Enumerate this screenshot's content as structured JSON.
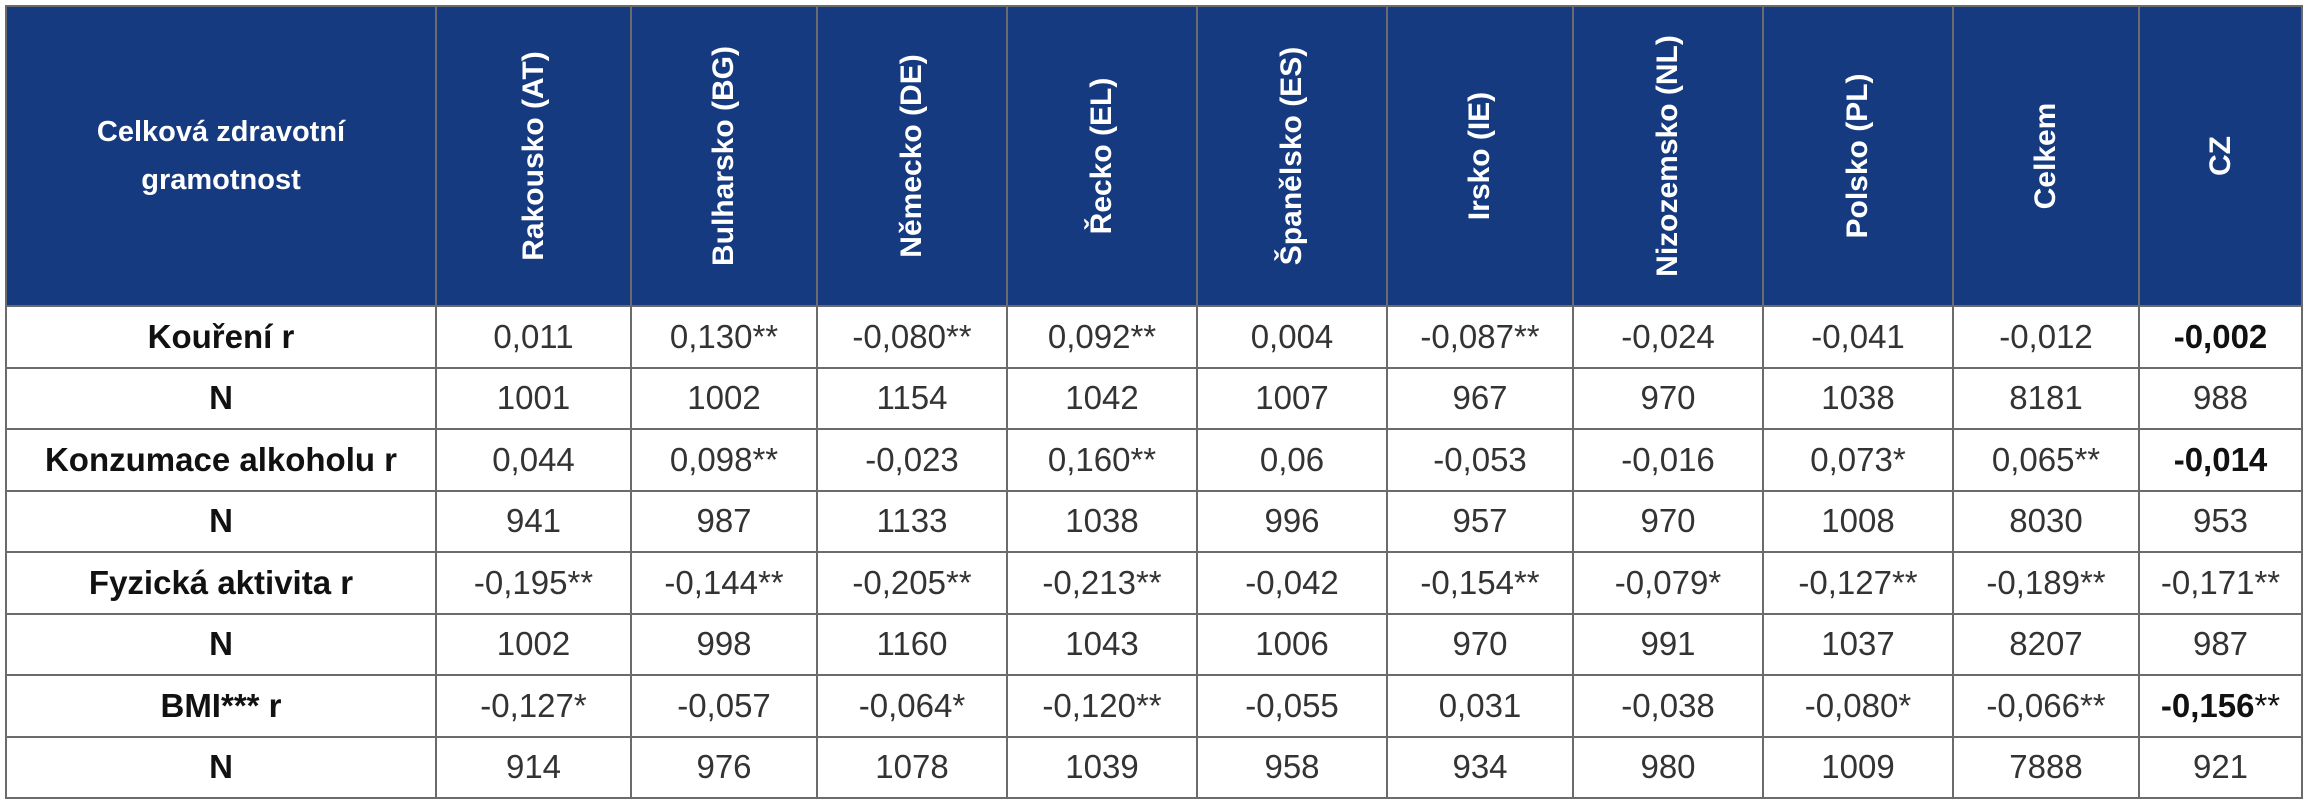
{
  "table": {
    "corner_label": "Celková zdravotní gramotnost",
    "columns": [
      "Rakousko (AT)",
      "Bulharsko (BG)",
      "Německo (DE)",
      "Řecko (EL)",
      "Španělsko (ES)",
      "Irsko (IE)",
      "Nizozemsko (NL)",
      "Polsko (PL)",
      "Celkem",
      "CZ"
    ],
    "rows": [
      {
        "label": "Kouření r",
        "cells": [
          {
            "value": "0,011",
            "sig": "",
            "bold": false
          },
          {
            "value": "0,130",
            "sig": "**",
            "bold": false
          },
          {
            "value": "-0,080",
            "sig": "**",
            "bold": false
          },
          {
            "value": "0,092",
            "sig": "**",
            "bold": false
          },
          {
            "value": "0,004",
            "sig": "",
            "bold": false
          },
          {
            "value": "-0,087",
            "sig": "**",
            "bold": false
          },
          {
            "value": "-0,024",
            "sig": "",
            "bold": false
          },
          {
            "value": "-0,041",
            "sig": "",
            "bold": false
          },
          {
            "value": "-0,012",
            "sig": "",
            "bold": false
          },
          {
            "value": "-0,002",
            "sig": "",
            "bold": true
          }
        ]
      },
      {
        "label": "N",
        "cells": [
          {
            "value": "1001",
            "sig": "",
            "bold": false
          },
          {
            "value": "1002",
            "sig": "",
            "bold": false
          },
          {
            "value": "1154",
            "sig": "",
            "bold": false
          },
          {
            "value": "1042",
            "sig": "",
            "bold": false
          },
          {
            "value": "1007",
            "sig": "",
            "bold": false
          },
          {
            "value": "967",
            "sig": "",
            "bold": false
          },
          {
            "value": "970",
            "sig": "",
            "bold": false
          },
          {
            "value": "1038",
            "sig": "",
            "bold": false
          },
          {
            "value": "8181",
            "sig": "",
            "bold": false
          },
          {
            "value": "988",
            "sig": "",
            "bold": false
          }
        ]
      },
      {
        "label": "Konzumace alkoholu r",
        "cells": [
          {
            "value": "0,044",
            "sig": "",
            "bold": false
          },
          {
            "value": "0,098",
            "sig": "**",
            "bold": false
          },
          {
            "value": "-0,023",
            "sig": "",
            "bold": false
          },
          {
            "value": "0,160",
            "sig": "**",
            "bold": false
          },
          {
            "value": "0,06",
            "sig": "",
            "bold": false
          },
          {
            "value": "-0,053",
            "sig": "",
            "bold": false
          },
          {
            "value": "-0,016",
            "sig": "",
            "bold": false
          },
          {
            "value": "0,073",
            "sig": "*",
            "bold": false
          },
          {
            "value": "0,065",
            "sig": "**",
            "bold": false
          },
          {
            "value": "-0,014",
            "sig": "",
            "bold": true
          }
        ]
      },
      {
        "label": "N",
        "cells": [
          {
            "value": "941",
            "sig": "",
            "bold": false
          },
          {
            "value": "987",
            "sig": "",
            "bold": false
          },
          {
            "value": "1133",
            "sig": "",
            "bold": false
          },
          {
            "value": "1038",
            "sig": "",
            "bold": false
          },
          {
            "value": "996",
            "sig": "",
            "bold": false
          },
          {
            "value": "957",
            "sig": "",
            "bold": false
          },
          {
            "value": "970",
            "sig": "",
            "bold": false
          },
          {
            "value": "1008",
            "sig": "",
            "bold": false
          },
          {
            "value": "8030",
            "sig": "",
            "bold": false
          },
          {
            "value": "953",
            "sig": "",
            "bold": false
          }
        ]
      },
      {
        "label": "Fyzická aktivita r",
        "cells": [
          {
            "value": "-0,195",
            "sig": "**",
            "bold": false
          },
          {
            "value": "-0,144",
            "sig": "**",
            "bold": false
          },
          {
            "value": "-0,205",
            "sig": "**",
            "bold": false
          },
          {
            "value": "-0,213",
            "sig": "**",
            "bold": false
          },
          {
            "value": "-0,042",
            "sig": "",
            "bold": false
          },
          {
            "value": "-0,154",
            "sig": "**",
            "bold": false
          },
          {
            "value": "-0,079",
            "sig": "*",
            "bold": false
          },
          {
            "value": "-0,127",
            "sig": "**",
            "bold": false
          },
          {
            "value": "-0,189",
            "sig": "**",
            "bold": false
          },
          {
            "value": "-0,171",
            "sig": "**",
            "bold": false
          }
        ]
      },
      {
        "label": "N",
        "cells": [
          {
            "value": "1002",
            "sig": "",
            "bold": false
          },
          {
            "value": "998",
            "sig": "",
            "bold": false
          },
          {
            "value": "1160",
            "sig": "",
            "bold": false
          },
          {
            "value": "1043",
            "sig": "",
            "bold": false
          },
          {
            "value": "1006",
            "sig": "",
            "bold": false
          },
          {
            "value": "970",
            "sig": "",
            "bold": false
          },
          {
            "value": "991",
            "sig": "",
            "bold": false
          },
          {
            "value": "1037",
            "sig": "",
            "bold": false
          },
          {
            "value": "8207",
            "sig": "",
            "bold": false
          },
          {
            "value": "987",
            "sig": "",
            "bold": false
          }
        ]
      },
      {
        "label": "BMI***  r",
        "cells": [
          {
            "value": "-0,127",
            "sig": "*",
            "bold": false
          },
          {
            "value": "-0,057",
            "sig": "",
            "bold": false
          },
          {
            "value": "-0,064",
            "sig": "*",
            "bold": false
          },
          {
            "value": "-0,120",
            "sig": "**",
            "bold": false
          },
          {
            "value": "-0,055",
            "sig": "",
            "bold": false
          },
          {
            "value": "0,031",
            "sig": "",
            "bold": false
          },
          {
            "value": "-0,038",
            "sig": "",
            "bold": false
          },
          {
            "value": "-0,080",
            "sig": "*",
            "bold": false
          },
          {
            "value": "-0,066",
            "sig": "**",
            "bold": false
          },
          {
            "value": "-0,156",
            "sig": "**",
            "bold": true
          }
        ]
      },
      {
        "label": "N",
        "cells": [
          {
            "value": "914",
            "sig": "",
            "bold": false
          },
          {
            "value": "976",
            "sig": "",
            "bold": false
          },
          {
            "value": "1078",
            "sig": "",
            "bold": false
          },
          {
            "value": "1039",
            "sig": "",
            "bold": false
          },
          {
            "value": "958",
            "sig": "",
            "bold": false
          },
          {
            "value": "934",
            "sig": "",
            "bold": false
          },
          {
            "value": "980",
            "sig": "",
            "bold": false
          },
          {
            "value": "1009",
            "sig": "",
            "bold": false
          },
          {
            "value": "7888",
            "sig": "",
            "bold": false
          },
          {
            "value": "921",
            "sig": "",
            "bold": false
          }
        ]
      }
    ]
  }
}
